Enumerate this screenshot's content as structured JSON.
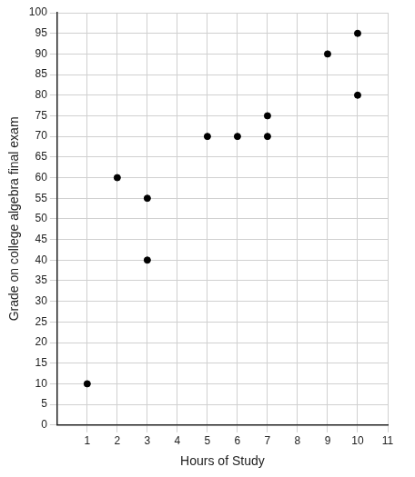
{
  "chart_data": {
    "type": "scatter",
    "x_label": "Hours of Study",
    "y_label": "Grade on college algebra final exam",
    "x": [
      1,
      2,
      3,
      3,
      5,
      6,
      7,
      7,
      9,
      10,
      10
    ],
    "values": [
      10,
      60,
      55,
      40,
      70,
      70,
      75,
      70,
      90,
      95,
      80
    ],
    "color": "#000000",
    "marker": "circle",
    "xlim": [
      0,
      11
    ],
    "xticks": [
      1,
      2,
      3,
      4,
      5,
      6,
      7,
      8,
      9,
      10,
      11
    ],
    "ylim": [
      0,
      100
    ],
    "yticks": [
      0,
      5,
      10,
      15,
      20,
      25,
      30,
      35,
      40,
      45,
      50,
      55,
      60,
      65,
      70,
      75,
      80,
      85,
      90,
      95,
      100
    ],
    "grid": true
  }
}
